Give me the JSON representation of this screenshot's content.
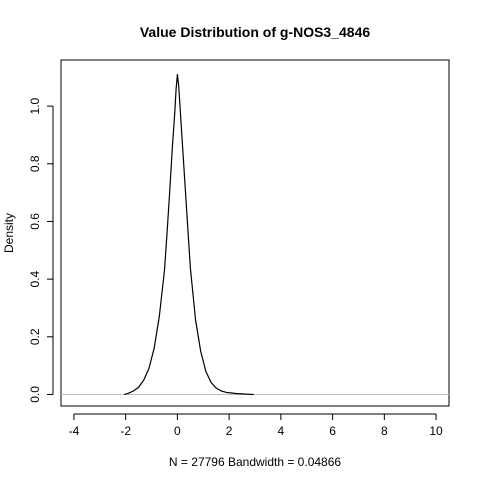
{
  "chart_data": {
    "type": "line",
    "title": "Value Distribution of g-NOS3_4846",
    "xlabel": "N = 27796   Bandwidth = 0.04866",
    "ylabel": "Density",
    "xlim": [
      -4.5,
      10.5
    ],
    "ylim": [
      -0.04,
      1.16
    ],
    "x_ticks": [
      -4,
      -2,
      0,
      2,
      4,
      6,
      8,
      10
    ],
    "x_tick_labels": [
      "-4",
      "-2",
      "0",
      "2",
      "4",
      "6",
      "8",
      "10"
    ],
    "y_ticks": [
      0.0,
      0.2,
      0.4,
      0.6,
      0.8,
      1.0
    ],
    "y_tick_labels": [
      "0.0",
      "0.2",
      "0.4",
      "0.6",
      "0.8",
      "1.0"
    ],
    "baseline": 0,
    "grid": false,
    "series": [
      {
        "color": "#000000",
        "x": [
          -2.05,
          -1.9,
          -1.7,
          -1.5,
          -1.3,
          -1.1,
          -0.9,
          -0.7,
          -0.5,
          -0.4,
          -0.3,
          -0.2,
          -0.1,
          -0.05,
          0.0,
          0.05,
          0.1,
          0.2,
          0.3,
          0.4,
          0.5,
          0.7,
          0.9,
          1.1,
          1.3,
          1.5,
          1.7,
          1.9,
          2.1,
          2.3,
          2.5,
          2.7,
          2.95
        ],
        "y": [
          0.0,
          0.004,
          0.012,
          0.025,
          0.05,
          0.09,
          0.16,
          0.27,
          0.43,
          0.56,
          0.7,
          0.85,
          0.98,
          1.06,
          1.11,
          1.07,
          1.0,
          0.86,
          0.72,
          0.58,
          0.44,
          0.26,
          0.15,
          0.08,
          0.042,
          0.022,
          0.012,
          0.007,
          0.005,
          0.003,
          0.002,
          0.001,
          0.0
        ]
      }
    ],
    "baseline_color": "#bebebe"
  }
}
